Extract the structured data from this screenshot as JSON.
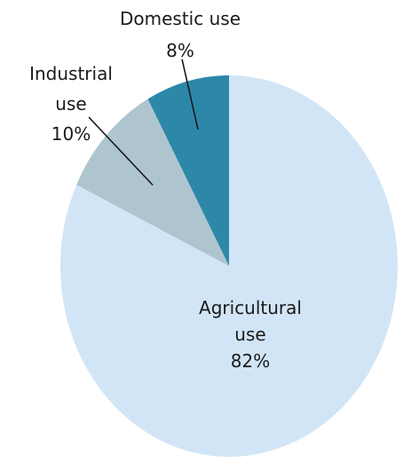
{
  "chart_data": {
    "type": "pie",
    "title": "",
    "slices": [
      {
        "name": "Agricultural use",
        "value": 82,
        "label_lines": [
          "Agricultural",
          "use"
        ],
        "pct_label": "82%",
        "color": "#d2e5f6"
      },
      {
        "name": "Industrial use",
        "value": 10,
        "label_lines": [
          "Industrial",
          "use"
        ],
        "pct_label": "10%",
        "color": "#aec5cf"
      },
      {
        "name": "Domestic use",
        "value": 8,
        "label_lines": [
          "Domestic use"
        ],
        "pct_label": "8%",
        "color": "#2d88a8"
      }
    ],
    "start_slice": "Domestic use",
    "direction": "counterclockwise",
    "legend": "none",
    "label_placement": "Agricultural inside, others outside with leader lines"
  }
}
